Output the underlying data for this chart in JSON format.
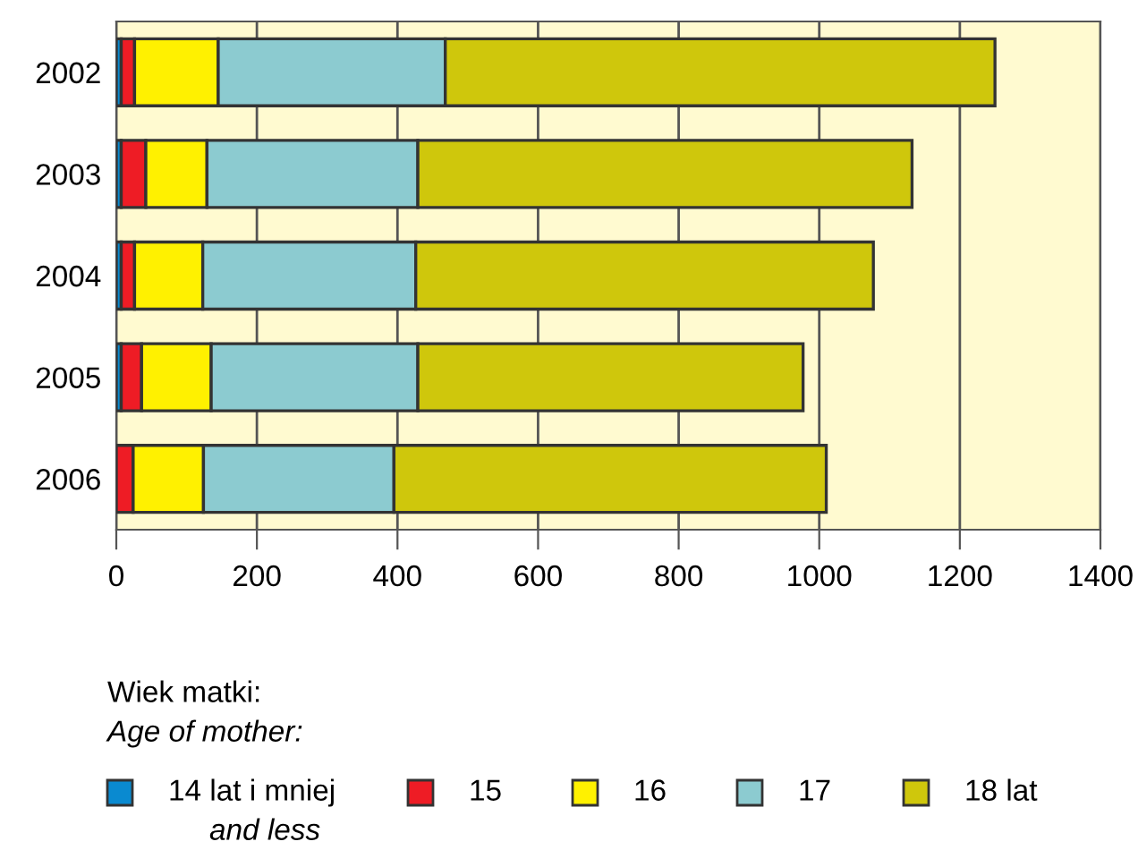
{
  "chart_data": {
    "type": "bar",
    "orientation": "horizontal",
    "stacked": true,
    "categories": [
      "2002",
      "2003",
      "2004",
      "2005",
      "2006"
    ],
    "series": [
      {
        "name": "14 lat i mniej\nand less",
        "color": "#0a8ad0",
        "values": [
          7,
          7,
          7,
          7,
          null
        ]
      },
      {
        "name": "15",
        "color": "#ee1c25",
        "values": [
          19,
          35,
          19,
          29,
          24
        ]
      },
      {
        "name": "16",
        "color": "#fff100",
        "values": [
          119,
          87,
          97,
          99,
          100
        ]
      },
      {
        "name": "17",
        "color": "#8ccbd0",
        "values": [
          323,
          300,
          303,
          294,
          271
        ]
      },
      {
        "name": "18 lat",
        "color": "#cfc70c",
        "values": [
          782,
          703,
          651,
          548,
          615
        ]
      }
    ],
    "xlim": [
      0,
      1400
    ],
    "xticks": [
      0,
      200,
      400,
      600,
      800,
      1000,
      1200,
      1400
    ],
    "grid": "x",
    "legend": "bottom",
    "legend_title": "Wiek matki:\nAge of mother:"
  }
}
